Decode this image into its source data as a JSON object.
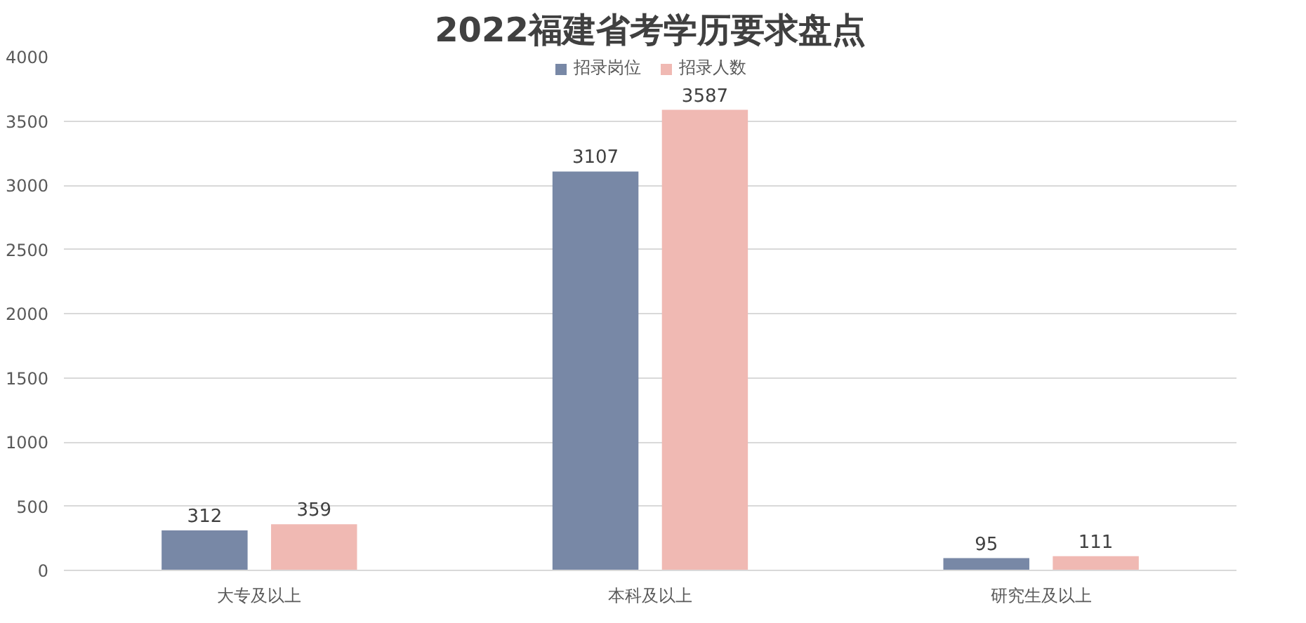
{
  "chart_data": {
    "type": "bar",
    "title": "2022福建省考学历要求盘点",
    "categories": [
      "大专及以上",
      "本科及以上",
      "研究生及以上"
    ],
    "series": [
      {
        "name": "招录岗位",
        "color": "#7888a6",
        "values": [
          312,
          3107,
          95
        ]
      },
      {
        "name": "招录人数",
        "color": "#f0b9b3",
        "values": [
          359,
          3587,
          111
        ]
      }
    ],
    "ylim": [
      0,
      4000
    ],
    "yticks": [
      0,
      500,
      1000,
      1500,
      2000,
      2500,
      3000,
      3500,
      4000
    ],
    "grid": "y",
    "legend": "top",
    "data_labels": true
  }
}
